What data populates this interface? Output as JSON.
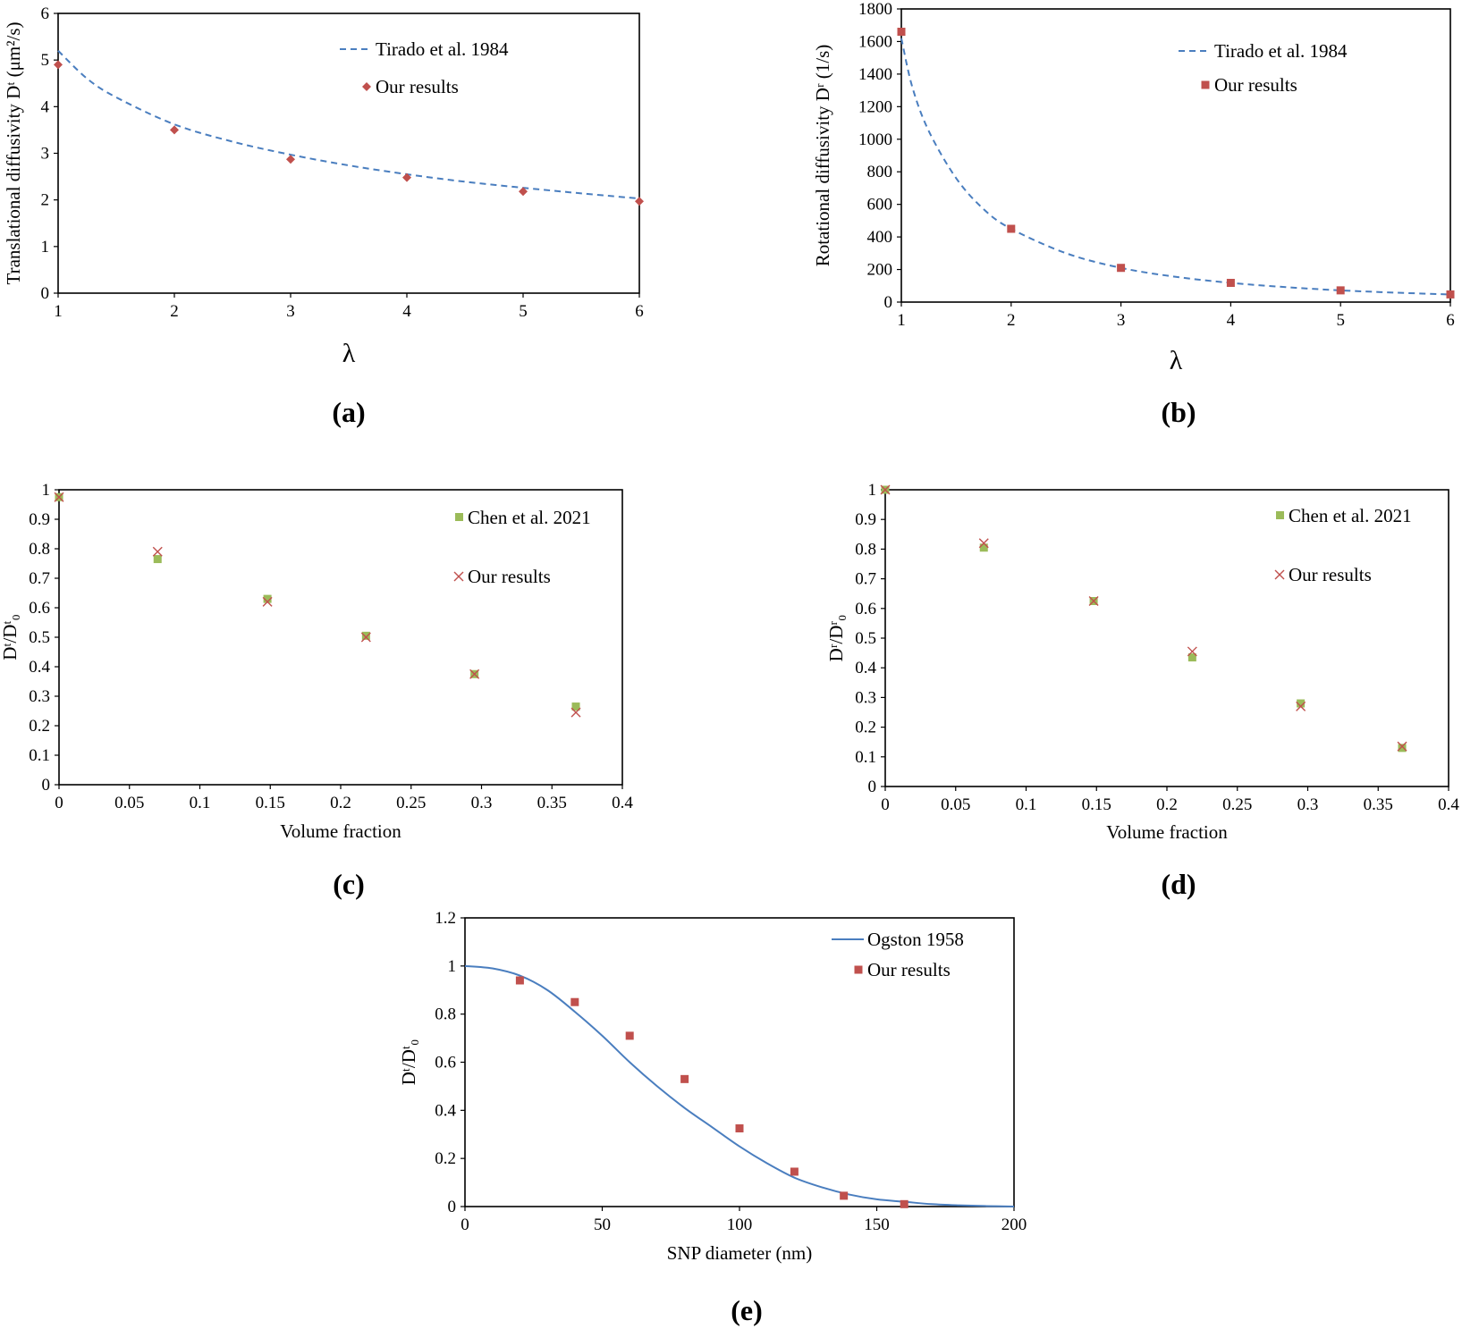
{
  "panels": {
    "a": "(a)",
    "b": "(b)",
    "c": "(c)",
    "d": "(d)",
    "e": "(e)"
  },
  "colors": {
    "dashed_line": "#4a7ebf",
    "solid_line": "#4a7ebf",
    "red_marker": "#c0504d",
    "green_marker": "#9bbb59",
    "cross_marker": "#c0504d"
  },
  "chart_data": [
    {
      "id": "a",
      "type": "scatter",
      "xlabel": "λ",
      "ylabel": "Translational diffusivity Dᵗ (μm²/s)",
      "xlim": [
        1,
        6
      ],
      "ylim": [
        0,
        6
      ],
      "xticks": [
        1,
        2,
        3,
        4,
        5,
        6
      ],
      "yticks": [
        0,
        1,
        2,
        3,
        4,
        5,
        6
      ],
      "legend_position": "top-right",
      "series": [
        {
          "name": "Tirado et al. 1984",
          "style": "dashed-line",
          "x": [
            1,
            1.25,
            1.5,
            2,
            2.5,
            3,
            3.5,
            4,
            4.5,
            5,
            5.5,
            6
          ],
          "y": [
            5.2,
            4.6,
            4.2,
            3.62,
            3.25,
            2.97,
            2.74,
            2.55,
            2.39,
            2.26,
            2.14,
            2.03
          ]
        },
        {
          "name": "Our results",
          "style": "diamond",
          "x": [
            1,
            2,
            3,
            4,
            5,
            6
          ],
          "y": [
            4.9,
            3.5,
            2.87,
            2.48,
            2.18,
            1.97
          ]
        }
      ]
    },
    {
      "id": "b",
      "type": "scatter",
      "xlabel": "λ",
      "ylabel": "Rotational diffusivity Dʳ (1/s)",
      "xlim": [
        1,
        6
      ],
      "ylim": [
        0,
        1800
      ],
      "xticks": [
        1,
        2,
        3,
        4,
        5,
        6
      ],
      "yticks": [
        0,
        200,
        400,
        600,
        800,
        1000,
        1200,
        1400,
        1600,
        1800
      ],
      "legend_position": "top-right",
      "series": [
        {
          "name": "Tirado et al. 1984",
          "style": "dashed-line",
          "x": [
            1,
            1.1,
            1.25,
            1.5,
            1.75,
            2,
            2.5,
            3,
            3.5,
            4,
            4.5,
            5,
            5.5,
            6
          ],
          "y": [
            1620,
            1320,
            1050,
            760,
            570,
            450,
            300,
            210,
            155,
            118,
            92,
            72,
            58,
            47
          ]
        },
        {
          "name": "Our results",
          "style": "square",
          "x": [
            1,
            2,
            3,
            4,
            5,
            6
          ],
          "y": [
            1660,
            450,
            210,
            118,
            72,
            47
          ]
        }
      ]
    },
    {
      "id": "c",
      "type": "scatter",
      "xlabel": "Volume fraction",
      "ylabel": "Dᵗ/Dᵗ₀",
      "xlim": [
        0,
        0.4
      ],
      "ylim": [
        0,
        1
      ],
      "xticks": [
        "0",
        "0.05",
        "0.1",
        "0.15",
        "0.2",
        "0.25",
        "0.3",
        "0.35",
        "0.4"
      ],
      "yticks": [
        "0",
        "0.1",
        "0.2",
        "0.3",
        "0.4",
        "0.5",
        "0.6",
        "0.7",
        "0.8",
        "0.9",
        "1"
      ],
      "legend_position": "top-right",
      "series": [
        {
          "name": "Chen et al. 2021",
          "style": "square",
          "x": [
            0,
            0.07,
            0.148,
            0.218,
            0.295,
            0.367
          ],
          "y": [
            0.975,
            0.765,
            0.63,
            0.505,
            0.375,
            0.265
          ]
        },
        {
          "name": "Our results",
          "style": "cross",
          "x": [
            0,
            0.07,
            0.148,
            0.218,
            0.295,
            0.367
          ],
          "y": [
            0.975,
            0.79,
            0.62,
            0.5,
            0.375,
            0.245
          ]
        }
      ]
    },
    {
      "id": "d",
      "type": "scatter",
      "xlabel": "Volume fraction",
      "ylabel": "Dʳ/Dʳ₀",
      "xlim": [
        0,
        0.4
      ],
      "ylim": [
        0,
        1
      ],
      "xticks": [
        "0",
        "0.05",
        "0.1",
        "0.15",
        "0.2",
        "0.25",
        "0.3",
        "0.35",
        "0.4"
      ],
      "yticks": [
        "0",
        "0.1",
        "0.2",
        "0.3",
        "0.4",
        "0.5",
        "0.6",
        "0.7",
        "0.8",
        "0.9",
        "1"
      ],
      "legend_position": "top-right",
      "series": [
        {
          "name": "Chen et al. 2021",
          "style": "square",
          "x": [
            0,
            0.07,
            0.148,
            0.218,
            0.295,
            0.367
          ],
          "y": [
            1.0,
            0.805,
            0.625,
            0.435,
            0.28,
            0.13
          ]
        },
        {
          "name": "Our results",
          "style": "cross",
          "x": [
            0,
            0.07,
            0.148,
            0.218,
            0.295,
            0.367
          ],
          "y": [
            1.0,
            0.82,
            0.625,
            0.455,
            0.27,
            0.135
          ]
        }
      ]
    },
    {
      "id": "e",
      "type": "scatter",
      "xlabel": "SNP diameter (nm)",
      "ylabel": "Dᵗ/Dᵗ₀",
      "xlim": [
        0,
        200
      ],
      "ylim": [
        0,
        1.2
      ],
      "xticks": [
        "0",
        "50",
        "100",
        "150",
        "200"
      ],
      "yticks": [
        "0",
        "0.2",
        "0.4",
        "0.6",
        "0.8",
        "1",
        "1.2"
      ],
      "legend_position": "top-right",
      "series": [
        {
          "name": "Ogston 1958",
          "style": "solid-line",
          "x": [
            0,
            10,
            20,
            30,
            40,
            50,
            60,
            70,
            80,
            90,
            100,
            110,
            120,
            130,
            140,
            150,
            160,
            170,
            180,
            190,
            200
          ],
          "y": [
            1.0,
            0.99,
            0.96,
            0.9,
            0.81,
            0.71,
            0.6,
            0.5,
            0.41,
            0.33,
            0.25,
            0.18,
            0.12,
            0.08,
            0.05,
            0.03,
            0.02,
            0.01,
            0.005,
            0.002,
            0
          ]
        },
        {
          "name": "Our results",
          "style": "square",
          "x": [
            20,
            40,
            60,
            80,
            100,
            120,
            138,
            160
          ],
          "y": [
            0.94,
            0.85,
            0.71,
            0.53,
            0.325,
            0.145,
            0.045,
            0.01
          ]
        }
      ]
    }
  ]
}
